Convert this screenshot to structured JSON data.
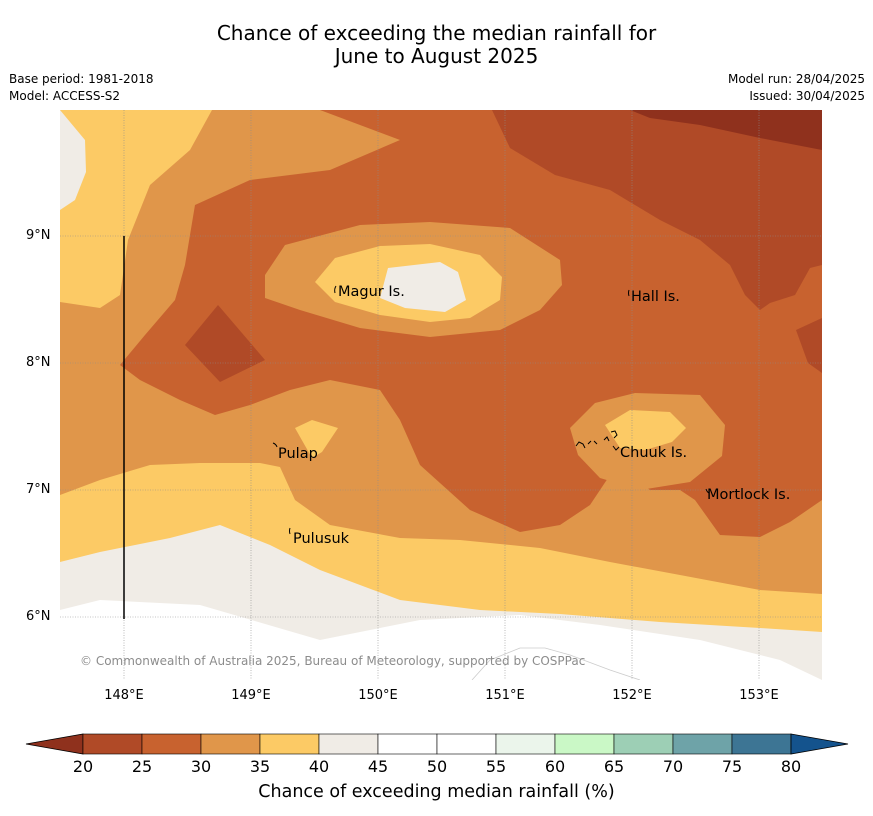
{
  "title_line1": "Chance of exceeding the median rainfall for",
  "title_line2": "June to August 2025",
  "meta": {
    "base_period": "Base period: 1981-2018",
    "model": "Model: ACCESS-S2",
    "model_run": "Model run: 28/04/2025",
    "issued": "Issued: 30/04/2025"
  },
  "axes": {
    "lat_labels": [
      "9°N",
      "8°N",
      "7°N",
      "6°N"
    ],
    "lon_labels": [
      "148°E",
      "149°E",
      "150°E",
      "151°E",
      "152°E",
      "153°E"
    ]
  },
  "places": {
    "magur": "Magur Is.",
    "hall": "Hall Is.",
    "pulap": "Pulap",
    "chuuk": "Chuuk Is.",
    "mortlock": "Mortlock Is.",
    "pulusuk": "Pulusuk"
  },
  "copyright": "© Commonwealth of Australia 2025, Bureau of Meteorology, supported by COSPPac",
  "colorbar": {
    "ticks": [
      "20",
      "25",
      "30",
      "35",
      "40",
      "45",
      "50",
      "55",
      "60",
      "65",
      "70",
      "75",
      "80"
    ],
    "colors": [
      "#b04a27",
      "#c8622f",
      "#e0964a",
      "#fcca65",
      "#f0ece6",
      "#ffffff",
      "#ffffff",
      "#ebf5eb",
      "#caf8c6",
      "#9dcfb5",
      "#6ea3a8",
      "#3d7594"
    ],
    "under_color": "#8f311d",
    "over_color": "#14538d",
    "label": "Chance of exceeding median rainfall (%)"
  }
}
